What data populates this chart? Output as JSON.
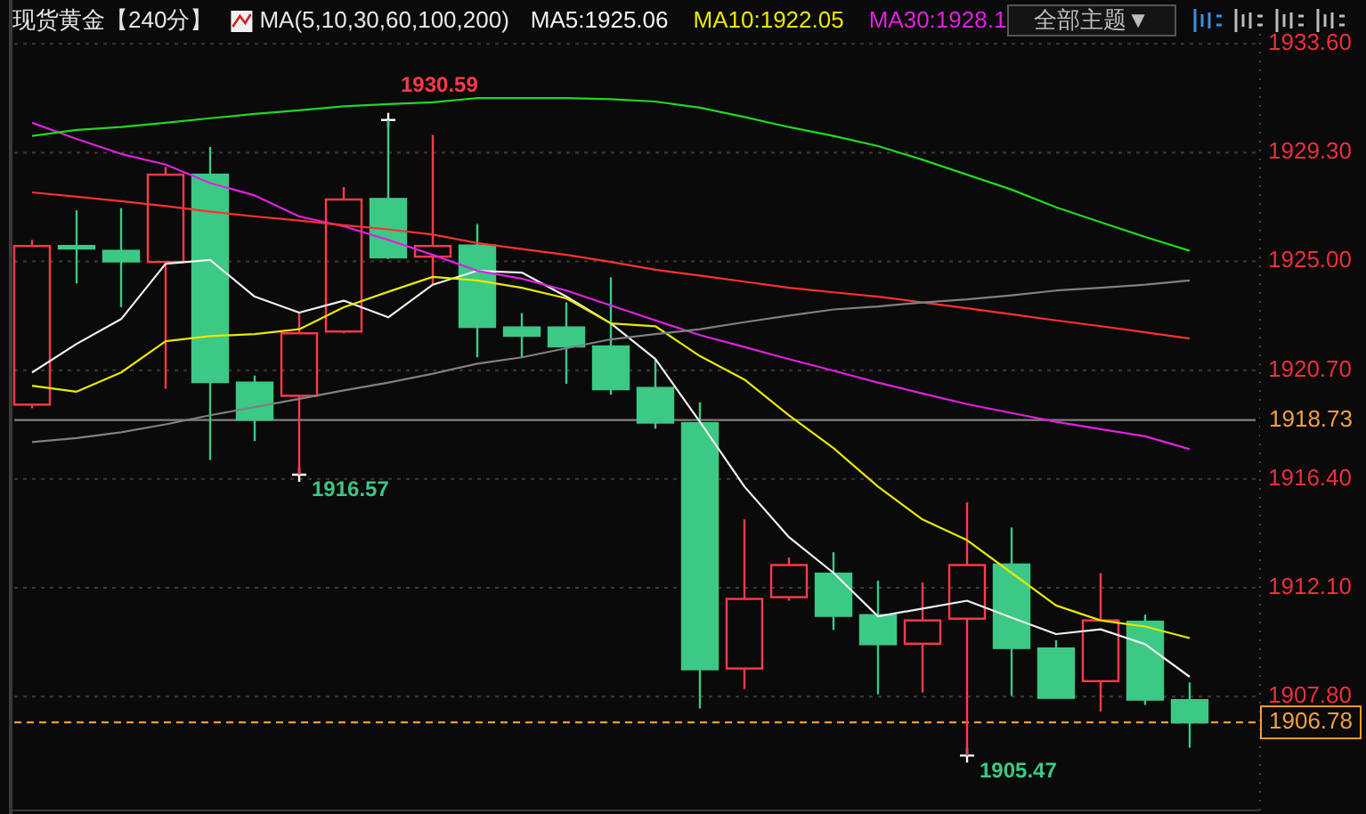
{
  "chart_data": {
    "type": "candlestick",
    "title": "现货黄金【240分】",
    "categories": [
      null,
      null,
      null,
      null,
      null,
      null,
      null,
      null,
      null,
      null,
      null,
      null,
      null,
      null,
      null,
      null,
      null,
      null,
      null,
      null,
      null,
      null,
      null,
      null,
      null,
      null,
      null
    ],
    "ohlc": [
      [
        1919.34,
        1925.85,
        1919.2,
        1925.61
      ],
      [
        1925.61,
        1927.02,
        1924.13,
        1925.51
      ],
      [
        1925.42,
        1927.11,
        1923.19,
        1925.0
      ],
      [
        1924.98,
        1928.74,
        1919.97,
        1928.43
      ],
      [
        1928.43,
        1929.53,
        1917.15,
        1920.23
      ],
      [
        1920.21,
        1920.49,
        1917.9,
        1918.75
      ],
      [
        1919.69,
        1922.96,
        1916.57,
        1922.16
      ],
      [
        1922.23,
        1927.94,
        1922.16,
        1927.45
      ],
      [
        1927.47,
        1930.59,
        1925.1,
        1925.16
      ],
      [
        1925.19,
        1930.0,
        1924.08,
        1925.61
      ],
      [
        1925.63,
        1926.48,
        1921.21,
        1922.41
      ],
      [
        1922.39,
        1922.96,
        1921.21,
        1922.06
      ],
      [
        1922.39,
        1923.38,
        1920.16,
        1921.64
      ],
      [
        1921.64,
        1924.37,
        1919.73,
        1919.95
      ],
      [
        1920.0,
        1921.12,
        1918.39,
        1918.63
      ],
      [
        1918.61,
        1919.43,
        1907.33,
        1908.88
      ],
      [
        1908.91,
        1914.8,
        1908.1,
        1911.66
      ],
      [
        1911.73,
        1913.3,
        1911.59,
        1913.0
      ],
      [
        1912.66,
        1913.51,
        1910.43,
        1910.99
      ],
      [
        1911.02,
        1912.38,
        1907.89,
        1909.87
      ],
      [
        1909.89,
        1912.31,
        1907.96,
        1910.81
      ],
      [
        1910.88,
        1915.48,
        1905.47,
        1913.0
      ],
      [
        1913.02,
        1914.48,
        1907.82,
        1909.72
      ],
      [
        1909.7,
        1910.03,
        1907.75,
        1907.75
      ],
      [
        1908.41,
        1912.68,
        1907.21,
        1910.81
      ],
      [
        1910.76,
        1911.04,
        1907.47,
        1907.68
      ],
      [
        1907.66,
        1908.36,
        1905.78,
        1906.78
      ]
    ],
    "colors": [
      "#ff3a4a",
      "#3cc885",
      "#3cc885",
      "#ff3a4a",
      "#3cc885",
      "#3cc885",
      "#ff3a4a",
      "#ff3a4a",
      "#3cc885",
      "#ff3a4a",
      "#3cc885",
      "#3cc885",
      "#3cc885",
      "#3cc885",
      "#3cc885",
      "#3cc885",
      "#ff3a4a",
      "#ff3a4a",
      "#3cc885",
      "#3cc885",
      "#ff3a4a",
      "#ff3a4a",
      "#3cc885",
      "#3cc885",
      "#ff3a4a",
      "#3cc885",
      "#3cc885"
    ],
    "series": [
      {
        "type": "line",
        "name": "MA5:1925.06",
        "color": "#f0f0f0",
        "values": [
          1920.61,
          1921.74,
          1922.72,
          1924.91,
          1925.06,
          1923.61,
          1922.98,
          1923.45,
          1922.79,
          1924.08,
          1924.63,
          1924.56,
          1923.61,
          1922.55,
          1921.14,
          1918.66,
          1916.1,
          1914.1,
          1912.69,
          1910.97,
          1911.28,
          1911.59,
          1910.92,
          1910.27,
          1910.46,
          1909.87,
          1908.58
        ]
      },
      {
        "type": "line",
        "name": "MA10:1922.05",
        "color": "#e8e800",
        "values": [
          1920.09,
          1919.85,
          1920.61,
          1921.85,
          1922.05,
          1922.13,
          1922.32,
          1923.19,
          1923.8,
          1924.39,
          1924.25,
          1923.96,
          1923.54,
          1922.55,
          1922.44,
          1921.26,
          1920.33,
          1918.92,
          1917.62,
          1916.1,
          1914.8,
          1913.98,
          1912.69,
          1911.4,
          1910.81,
          1910.57,
          1910.11
        ]
      },
      {
        "type": "line",
        "name": "MA30:1928.1",
        "color": "#e020e0",
        "values": [
          1930.48,
          1929.84,
          1929.25,
          1928.83,
          1928.1,
          1927.61,
          1926.78,
          1926.39,
          1925.85,
          1925.26,
          1924.63,
          1924.32,
          1923.85,
          1923.26,
          1922.67,
          1922.09,
          1921.62,
          1921.14,
          1920.68,
          1920.21,
          1919.78,
          1919.36,
          1919.01,
          1918.66,
          1918.37,
          1918.09,
          1917.58
        ]
      },
      {
        "type": "line",
        "color": "#ff3030",
        "values": [
          1927.73,
          1927.56,
          1927.38,
          1927.19,
          1926.97,
          1926.78,
          1926.62,
          1926.43,
          1926.27,
          1926.06,
          1925.73,
          1925.49,
          1925.26,
          1924.98,
          1924.67,
          1924.44,
          1924.2,
          1923.96,
          1923.78,
          1923.61,
          1923.38,
          1923.15,
          1922.91,
          1922.67,
          1922.44,
          1922.2,
          1921.95
        ]
      },
      {
        "type": "line",
        "color": "#20d820",
        "values": [
          1929.96,
          1930.2,
          1930.31,
          1930.48,
          1930.66,
          1930.83,
          1930.97,
          1931.13,
          1931.22,
          1931.29,
          1931.46,
          1931.46,
          1931.46,
          1931.41,
          1931.32,
          1931.08,
          1930.71,
          1930.31,
          1929.96,
          1929.56,
          1929.02,
          1928.43,
          1927.84,
          1927.14,
          1926.55,
          1925.97,
          1925.42
        ]
      },
      {
        "type": "line",
        "color": "#808080",
        "values": [
          1917.86,
          1918.02,
          1918.25,
          1918.56,
          1918.92,
          1919.24,
          1919.57,
          1919.9,
          1920.21,
          1920.56,
          1920.96,
          1921.21,
          1921.57,
          1921.92,
          1922.13,
          1922.32,
          1922.6,
          1922.86,
          1923.1,
          1923.22,
          1923.38,
          1923.5,
          1923.66,
          1923.85,
          1923.96,
          1924.08,
          1924.25
        ]
      }
    ],
    "ylim": [
      1903.3,
      1934.7
    ],
    "yticks": [
      {
        "value": 1933.6,
        "label": "1933.60"
      },
      {
        "value": 1929.3,
        "label": "1929.30"
      },
      {
        "value": 1925,
        "label": "1925.00"
      },
      {
        "value": 1920.7,
        "label": "1920.70"
      },
      {
        "value": 1916.4,
        "label": "1916.40"
      },
      {
        "value": 1912.1,
        "label": "1912.10"
      },
      {
        "value": 1907.8,
        "label": "1907.80"
      }
    ],
    "grid": "y",
    "legend": "top",
    "ref_lines": [
      {
        "axis": "y",
        "value": 1918.73,
        "label": "1918.73",
        "color": "#808080"
      },
      {
        "axis": "y",
        "value": 1906.78,
        "label": "1906.78",
        "color": "#ff9a2e",
        "line_style": "dashed"
      }
    ],
    "annotations": [
      "MA(5,10,30,60,100,200)",
      "全部主题▼",
      "1930.59",
      "1916.57",
      "1905.47"
    ]
  }
}
